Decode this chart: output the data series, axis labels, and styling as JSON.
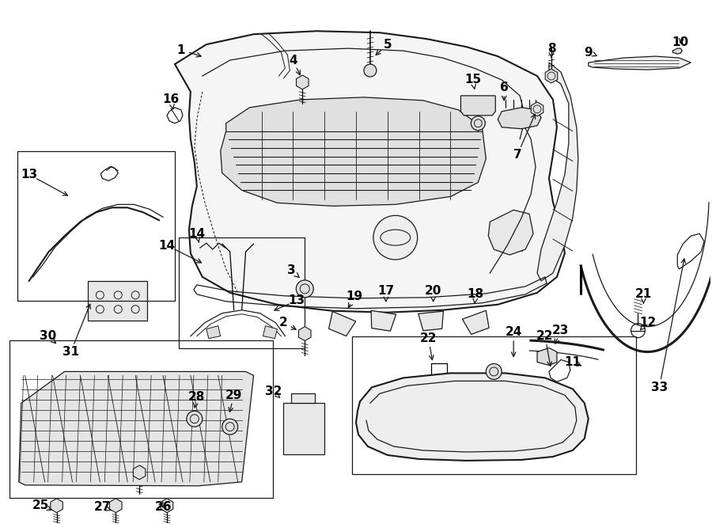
{
  "bg_color": "#ffffff",
  "lc": "#1a1a1a",
  "fontsize_label": 11,
  "fontsize_small": 9
}
